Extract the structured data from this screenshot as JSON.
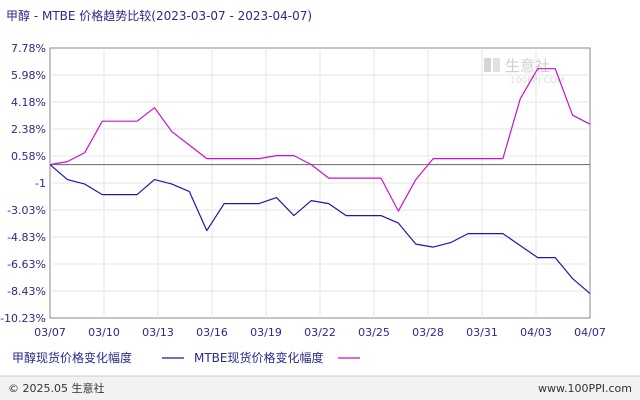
{
  "chart_data": {
    "type": "line",
    "title": "甲醇 - MTBE 价格趋势比较(2023-03-07 - 2023-04-07)",
    "x_ticks": [
      "03/07",
      "03/10",
      "03/13",
      "03/16",
      "03/19",
      "03/22",
      "03/25",
      "03/28",
      "03/31",
      "04/03",
      "04/07"
    ],
    "y_ticks": [
      "7.78%",
      "5.98%",
      "4.18%",
      "2.38%",
      "0.58%",
      "-1",
      "-3.03%",
      "-4.83%",
      "-6.63%",
      "-8.43%",
      "-10.23%"
    ],
    "ylim": [
      -10.23,
      7.78
    ],
    "x_range": [
      0,
      31
    ],
    "grid": true,
    "legend_position": "bottom-left",
    "series": [
      {
        "name": "甲醇现货价格变化幅度",
        "color": "#1a1aaa",
        "x": [
          0,
          1,
          2,
          3,
          4,
          5,
          6,
          7,
          8,
          9,
          10,
          11,
          12,
          13,
          14,
          15,
          16,
          17,
          18,
          19,
          20,
          21,
          22,
          23,
          24,
          25,
          26,
          27,
          28,
          29,
          30,
          31
        ],
        "y": [
          0.0,
          -1.0,
          -1.3,
          -2.0,
          -2.0,
          -2.0,
          -1.0,
          -1.3,
          -1.8,
          -4.4,
          -2.6,
          -2.6,
          -2.6,
          -2.2,
          -3.4,
          -2.4,
          -2.6,
          -3.4,
          -3.4,
          -3.4,
          -3.9,
          -5.3,
          -5.5,
          -5.2,
          -4.6,
          -4.6,
          -4.6,
          -5.4,
          -6.2,
          -6.2,
          -7.6,
          -8.6
        ]
      },
      {
        "name": "MTBE现货价格变化幅度",
        "color": "#cc11cc",
        "x": [
          0,
          1,
          2,
          3,
          4,
          5,
          6,
          7,
          8,
          9,
          10,
          11,
          12,
          13,
          14,
          15,
          16,
          17,
          18,
          19,
          20,
          21,
          22,
          23,
          24,
          25,
          26,
          27,
          28,
          29,
          30,
          31
        ],
        "y": [
          0.0,
          0.2,
          0.8,
          2.9,
          2.9,
          2.9,
          3.8,
          2.2,
          1.3,
          0.4,
          0.4,
          0.4,
          0.4,
          0.6,
          0.6,
          0.0,
          -0.9,
          -0.9,
          -0.9,
          -0.9,
          -3.1,
          -1.0,
          0.4,
          0.4,
          0.4,
          0.4,
          0.4,
          4.4,
          6.4,
          6.4,
          3.3,
          2.7
        ]
      }
    ]
  },
  "watermark": {
    "text": "生意社",
    "url": "100PPI.COM"
  },
  "footer": {
    "left": "© 2025.05 生意社",
    "right": "www.100PPI.com"
  }
}
